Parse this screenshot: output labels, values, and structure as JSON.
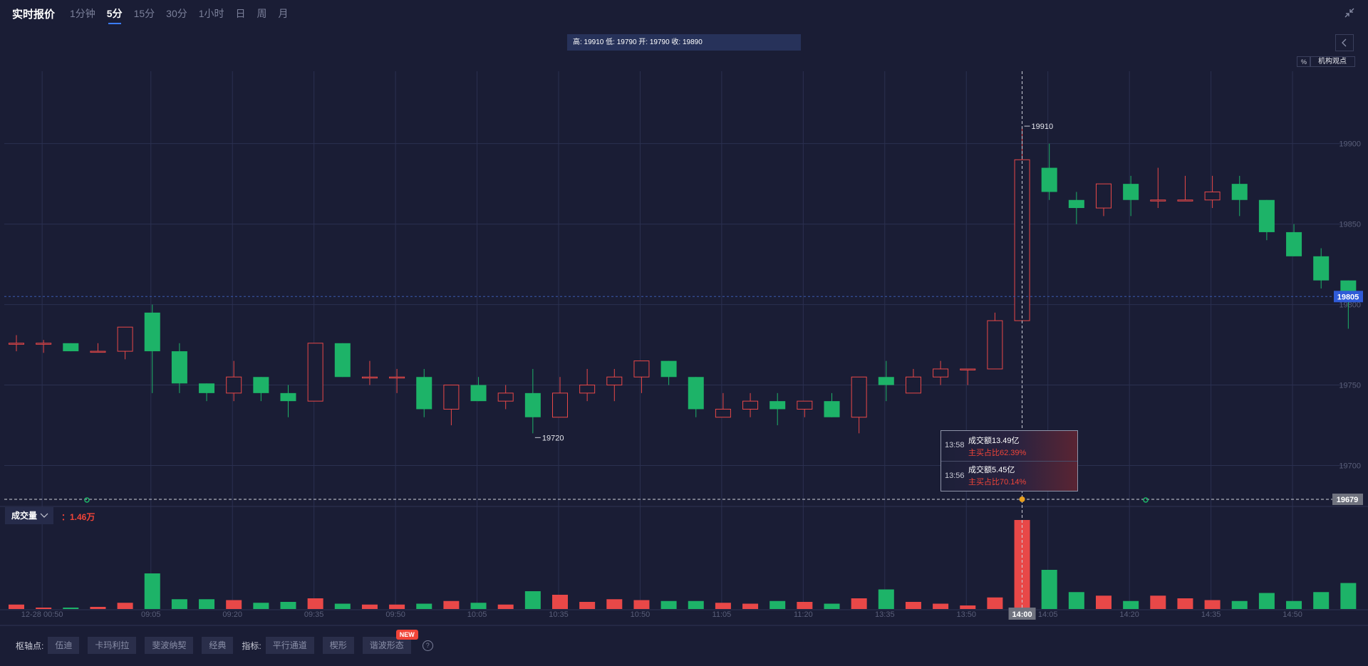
{
  "header": {
    "title": "实时报价",
    "tabs": [
      "1分钟",
      "5分",
      "15分",
      "30分",
      "1小时",
      "日",
      "周",
      "月"
    ],
    "active_tab": 1
  },
  "ohlc_info": "高: 19910 低: 19790 开: 19790 收: 19890",
  "pct_label": "%",
  "inst_label": "机构观点",
  "volume_panel": {
    "selector_label": "成交量",
    "value": "：1.46万"
  },
  "tooltip": {
    "rows": [
      {
        "time": "13:58",
        "amount": "成交额13.49亿",
        "ratio": "主买占比62.39%"
      },
      {
        "time": "13:56",
        "amount": "成交额5.45亿",
        "ratio": "主买占比70.14%"
      }
    ]
  },
  "footer": {
    "pivot_label": "枢轴点:",
    "pivot_buttons": [
      "伍迪",
      "卡玛利拉",
      "斐波纳契",
      "经典"
    ],
    "indicator_label": "指标:",
    "indicator_buttons": [
      "平行通道",
      "楔形",
      "谐波形态"
    ],
    "new_badge": "NEW",
    "help": "?"
  },
  "colors": {
    "up": "#e84848",
    "down": "#1db368",
    "background": "#1a1d35",
    "accent": "#3b7cff"
  },
  "chart_data": {
    "type": "candlestick",
    "ylim": [
      19675,
      19945
    ],
    "y_ticks": [
      19900,
      19850,
      19800,
      19750,
      19700
    ],
    "current_price_label": "19805",
    "current_price": 19805,
    "crosshair_price_label": "19679",
    "crosshair_price": 19679,
    "crosshair_time_label": "14:00",
    "crosshair_index": 37,
    "high_label": "19910",
    "high_index": 37,
    "high_value": 19910,
    "low_label": "19720",
    "low_index": 19,
    "low_value": 19720,
    "x_labels": [
      {
        "i": 1,
        "label": "12-28 00:50"
      },
      {
        "i": 5,
        "label": "09:05"
      },
      {
        "i": 8,
        "label": "09:20"
      },
      {
        "i": 11,
        "label": "09:35"
      },
      {
        "i": 14,
        "label": "09:50"
      },
      {
        "i": 17,
        "label": "10:05"
      },
      {
        "i": 20,
        "label": "10:35"
      },
      {
        "i": 23,
        "label": "10:50"
      },
      {
        "i": 26,
        "label": "11:05"
      },
      {
        "i": 29,
        "label": "11:20"
      },
      {
        "i": 32,
        "label": "13:35"
      },
      {
        "i": 35,
        "label": "13:50"
      },
      {
        "i": 38,
        "label": "14:05"
      },
      {
        "i": 41,
        "label": "14:20"
      },
      {
        "i": 44,
        "label": "14:35"
      },
      {
        "i": 47,
        "label": "14:50"
      }
    ],
    "candles": [
      {
        "o": 19776,
        "h": 19781,
        "l": 19771,
        "c": 19776
      },
      {
        "o": 19776,
        "h": 19778,
        "l": 19770,
        "c": 19776
      },
      {
        "o": 19776,
        "h": 19776,
        "l": 19771,
        "c": 19771
      },
      {
        "o": 19771,
        "h": 19776,
        "l": 19771,
        "c": 19771
      },
      {
        "o": 19771,
        "h": 19786,
        "l": 19766,
        "c": 19786
      },
      {
        "o": 19795,
        "h": 19800,
        "l": 19745,
        "c": 19771
      },
      {
        "o": 19771,
        "h": 19776,
        "l": 19745,
        "c": 19751
      },
      {
        "o": 19751,
        "h": 19751,
        "l": 19740,
        "c": 19745
      },
      {
        "o": 19745,
        "h": 19765,
        "l": 19740,
        "c": 19755
      },
      {
        "o": 19755,
        "h": 19755,
        "l": 19740,
        "c": 19745
      },
      {
        "o": 19745,
        "h": 19750,
        "l": 19730,
        "c": 19740
      },
      {
        "o": 19740,
        "h": 19776,
        "l": 19740,
        "c": 19776
      },
      {
        "o": 19776,
        "h": 19776,
        "l": 19755,
        "c": 19755
      },
      {
        "o": 19755,
        "h": 19765,
        "l": 19750,
        "c": 19755
      },
      {
        "o": 19755,
        "h": 19760,
        "l": 19745,
        "c": 19755
      },
      {
        "o": 19755,
        "h": 19760,
        "l": 19730,
        "c": 19735
      },
      {
        "o": 19735,
        "h": 19750,
        "l": 19725,
        "c": 19750
      },
      {
        "o": 19750,
        "h": 19755,
        "l": 19740,
        "c": 19740
      },
      {
        "o": 19740,
        "h": 19750,
        "l": 19735,
        "c": 19745
      },
      {
        "o": 19745,
        "h": 19760,
        "l": 19720,
        "c": 19730
      },
      {
        "o": 19730,
        "h": 19755,
        "l": 19730,
        "c": 19745
      },
      {
        "o": 19745,
        "h": 19760,
        "l": 19740,
        "c": 19750
      },
      {
        "o": 19750,
        "h": 19760,
        "l": 19740,
        "c": 19755
      },
      {
        "o": 19755,
        "h": 19765,
        "l": 19745,
        "c": 19765
      },
      {
        "o": 19765,
        "h": 19765,
        "l": 19750,
        "c": 19755
      },
      {
        "o": 19755,
        "h": 19755,
        "l": 19730,
        "c": 19735
      },
      {
        "o": 19730,
        "h": 19745,
        "l": 19730,
        "c": 19735
      },
      {
        "o": 19735,
        "h": 19745,
        "l": 19730,
        "c": 19740
      },
      {
        "o": 19740,
        "h": 19745,
        "l": 19725,
        "c": 19735
      },
      {
        "o": 19735,
        "h": 19740,
        "l": 19730,
        "c": 19740
      },
      {
        "o": 19740,
        "h": 19745,
        "l": 19730,
        "c": 19730
      },
      {
        "o": 19730,
        "h": 19755,
        "l": 19720,
        "c": 19755
      },
      {
        "o": 19755,
        "h": 19765,
        "l": 19740,
        "c": 19750
      },
      {
        "o": 19745,
        "h": 19760,
        "l": 19745,
        "c": 19755
      },
      {
        "o": 19755,
        "h": 19765,
        "l": 19750,
        "c": 19760
      },
      {
        "o": 19760,
        "h": 19760,
        "l": 19750,
        "c": 19760
      },
      {
        "o": 19760,
        "h": 19795,
        "l": 19760,
        "c": 19790
      },
      {
        "o": 19790,
        "h": 19910,
        "l": 19790,
        "c": 19890
      },
      {
        "o": 19885,
        "h": 19900,
        "l": 19865,
        "c": 19870
      },
      {
        "o": 19865,
        "h": 19870,
        "l": 19850,
        "c": 19860
      },
      {
        "o": 19860,
        "h": 19875,
        "l": 19855,
        "c": 19875
      },
      {
        "o": 19875,
        "h": 19880,
        "l": 19855,
        "c": 19865
      },
      {
        "o": 19865,
        "h": 19885,
        "l": 19860,
        "c": 19865
      },
      {
        "o": 19865,
        "h": 19880,
        "l": 19865,
        "c": 19865
      },
      {
        "o": 19865,
        "h": 19880,
        "l": 19860,
        "c": 19870
      },
      {
        "o": 19875,
        "h": 19880,
        "l": 19855,
        "c": 19865
      },
      {
        "o": 19865,
        "h": 19865,
        "l": 19840,
        "c": 19845
      },
      {
        "o": 19845,
        "h": 19850,
        "l": 19830,
        "c": 19830
      },
      {
        "o": 19830,
        "h": 19835,
        "l": 19810,
        "c": 19815
      },
      {
        "o": 19815,
        "h": 19815,
        "l": 19785,
        "c": 19805
      }
    ],
    "volume": [
      0.25,
      0.08,
      0.08,
      0.12,
      0.35,
      2.0,
      0.55,
      0.55,
      0.5,
      0.35,
      0.4,
      0.6,
      0.3,
      0.25,
      0.25,
      0.3,
      0.45,
      0.35,
      0.25,
      1.0,
      0.8,
      0.4,
      0.55,
      0.5,
      0.45,
      0.45,
      0.35,
      0.3,
      0.45,
      0.4,
      0.3,
      0.6,
      1.1,
      0.4,
      0.3,
      0.2,
      0.65,
      5.0,
      2.2,
      0.95,
      0.75,
      0.45,
      0.75,
      0.6,
      0.5,
      0.45,
      0.9,
      0.45,
      0.95,
      1.46
    ]
  }
}
